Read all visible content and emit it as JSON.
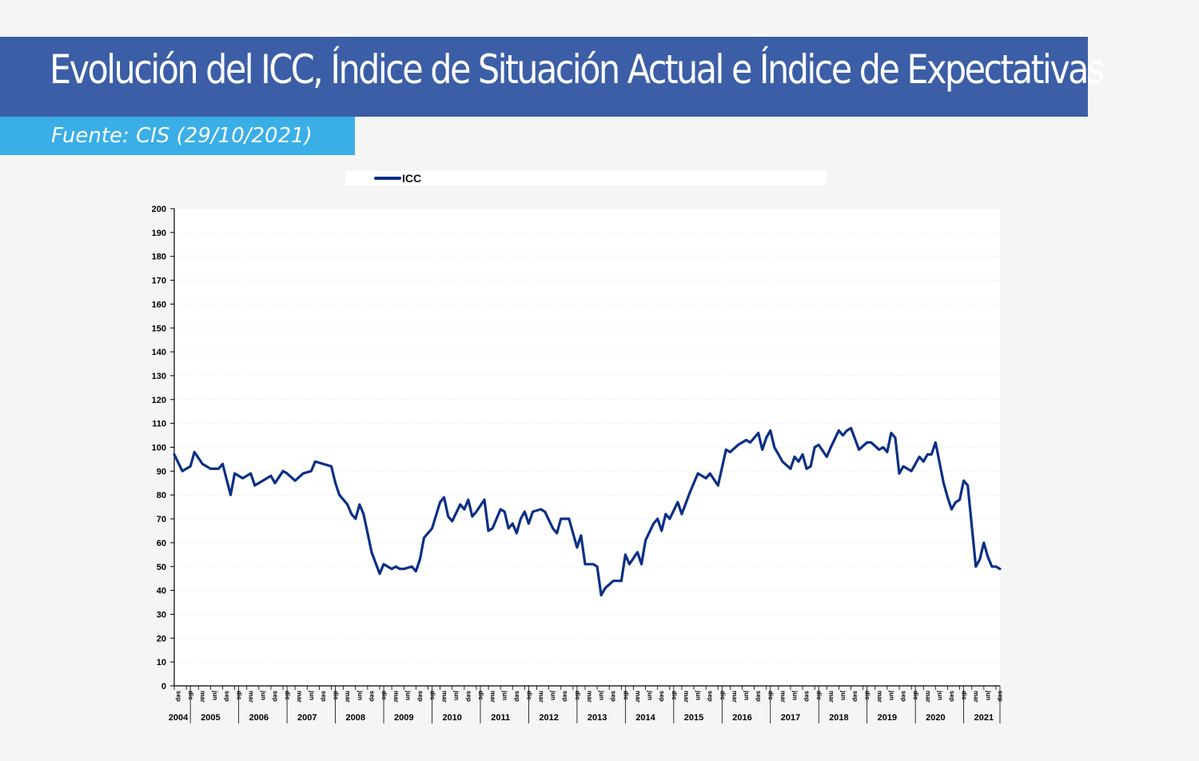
{
  "header": {
    "title": "Evolución del ICC, Índice de Situación Actual e Índice de Expectativas",
    "source": "Fuente: CIS (29/10/2021)"
  },
  "colors": {
    "title_bar": "#3b5ea6",
    "source_bar": "#3aaee6",
    "icc": "#0a2f86",
    "situacion": "#6b2278",
    "expectativas": "#14a19a"
  },
  "chart_data": {
    "type": "line",
    "title": "",
    "xlabel": "",
    "ylabel": "",
    "ylim": [
      0,
      200
    ],
    "yticks": [
      0,
      10,
      20,
      30,
      40,
      50,
      60,
      70,
      80,
      90,
      100,
      110,
      120,
      130,
      140,
      150,
      160,
      170,
      180,
      190,
      200
    ],
    "grid": true,
    "legend_position": "top",
    "x_start": "2004-09",
    "x_end": "2021-10",
    "month_tick_labels": [
      "mar",
      "jun",
      "sep",
      "dic"
    ],
    "year_labels": [
      {
        "label": "2004",
        "at": "2004-10"
      },
      {
        "label": "2005",
        "at": "2005-06"
      },
      {
        "label": "2006",
        "at": "2006-06"
      },
      {
        "label": "2007",
        "at": "2007-06"
      },
      {
        "label": "2008",
        "at": "2008-06"
      },
      {
        "label": "2009",
        "at": "2009-06"
      },
      {
        "label": "2010",
        "at": "2010-06"
      },
      {
        "label": "2011",
        "at": "2011-06"
      },
      {
        "label": "2012",
        "at": "2012-06"
      },
      {
        "label": "2013",
        "at": "2013-06"
      },
      {
        "label": "2014",
        "at": "2014-06"
      },
      {
        "label": "2015",
        "at": "2015-06"
      },
      {
        "label": "2016",
        "at": "2016-06"
      },
      {
        "label": "2017",
        "at": "2017-06"
      },
      {
        "label": "2018",
        "at": "2018-06"
      },
      {
        "label": "2019",
        "at": "2019-06"
      },
      {
        "label": "2020",
        "at": "2020-06"
      },
      {
        "label": "2021",
        "at": "2021-06"
      }
    ],
    "series": [
      {
        "name": "ICC",
        "color": "#0a2f86",
        "points": [
          [
            "2004-09",
            97
          ],
          [
            "2004-11",
            90
          ],
          [
            "2005-01",
            92
          ],
          [
            "2005-02",
            98
          ],
          [
            "2005-04",
            93
          ],
          [
            "2005-06",
            91
          ],
          [
            "2005-08",
            91
          ],
          [
            "2005-09",
            93
          ],
          [
            "2005-11",
            80
          ],
          [
            "2005-12",
            89
          ],
          [
            "2006-02",
            87
          ],
          [
            "2006-04",
            89
          ],
          [
            "2006-05",
            84
          ],
          [
            "2006-07",
            86
          ],
          [
            "2006-09",
            88
          ],
          [
            "2006-10",
            85
          ],
          [
            "2006-12",
            90
          ],
          [
            "2007-01",
            89
          ],
          [
            "2007-03",
            86
          ],
          [
            "2007-05",
            89
          ],
          [
            "2007-07",
            90
          ],
          [
            "2007-08",
            94
          ],
          [
            "2007-10",
            93
          ],
          [
            "2007-12",
            92
          ],
          [
            "2008-01",
            85
          ],
          [
            "2008-02",
            80
          ],
          [
            "2008-04",
            76
          ],
          [
            "2008-05",
            72
          ],
          [
            "2008-06",
            70
          ],
          [
            "2008-07",
            76
          ],
          [
            "2008-08",
            72
          ],
          [
            "2008-09",
            64
          ],
          [
            "2008-10",
            56
          ],
          [
            "2008-12",
            47
          ],
          [
            "2009-01",
            51
          ],
          [
            "2009-02",
            50
          ],
          [
            "2009-03",
            49
          ],
          [
            "2009-04",
            50
          ],
          [
            "2009-05",
            49
          ],
          [
            "2009-06",
            49
          ],
          [
            "2009-08",
            50
          ],
          [
            "2009-09",
            48
          ],
          [
            "2009-10",
            53
          ],
          [
            "2009-11",
            62
          ],
          [
            "2010-01",
            66
          ],
          [
            "2010-03",
            77
          ],
          [
            "2010-04",
            79
          ],
          [
            "2010-05",
            71
          ],
          [
            "2010-06",
            69
          ],
          [
            "2010-08",
            76
          ],
          [
            "2010-09",
            74
          ],
          [
            "2010-10",
            78
          ],
          [
            "2010-11",
            71
          ],
          [
            "2010-12",
            73
          ],
          [
            "2011-02",
            78
          ],
          [
            "2011-03",
            65
          ],
          [
            "2011-04",
            66
          ],
          [
            "2011-06",
            74
          ],
          [
            "2011-07",
            73
          ],
          [
            "2011-08",
            66
          ],
          [
            "2011-09",
            68
          ],
          [
            "2011-10",
            64
          ],
          [
            "2011-11",
            70
          ],
          [
            "2011-12",
            73
          ],
          [
            "2012-01",
            68
          ],
          [
            "2012-02",
            73
          ],
          [
            "2012-04",
            74
          ],
          [
            "2012-05",
            73
          ],
          [
            "2012-07",
            66
          ],
          [
            "2012-08",
            64
          ],
          [
            "2012-09",
            70
          ],
          [
            "2012-11",
            70
          ],
          [
            "2013-01",
            58
          ],
          [
            "2013-02",
            63
          ],
          [
            "2013-03",
            51
          ],
          [
            "2013-05",
            51
          ],
          [
            "2013-06",
            50
          ],
          [
            "2013-07",
            38
          ],
          [
            "2013-08",
            41
          ],
          [
            "2013-10",
            44
          ],
          [
            "2013-12",
            44
          ],
          [
            "2014-01",
            55
          ],
          [
            "2014-02",
            51
          ],
          [
            "2014-04",
            56
          ],
          [
            "2014-05",
            51
          ],
          [
            "2014-06",
            61
          ],
          [
            "2014-08",
            68
          ],
          [
            "2014-09",
            70
          ],
          [
            "2014-10",
            65
          ],
          [
            "2014-11",
            72
          ],
          [
            "2014-12",
            70
          ],
          [
            "2015-02",
            77
          ],
          [
            "2015-03",
            72
          ],
          [
            "2015-05",
            81
          ],
          [
            "2015-07",
            89
          ],
          [
            "2015-09",
            87
          ],
          [
            "2015-10",
            89
          ],
          [
            "2015-12",
            84
          ],
          [
            "2016-02",
            99
          ],
          [
            "2016-03",
            98
          ],
          [
            "2016-05",
            101
          ],
          [
            "2016-07",
            103
          ],
          [
            "2016-08",
            102
          ],
          [
            "2016-10",
            106
          ],
          [
            "2016-11",
            99
          ],
          [
            "2016-12",
            104
          ],
          [
            "2017-01",
            107
          ],
          [
            "2017-02",
            100
          ],
          [
            "2017-04",
            94
          ],
          [
            "2017-06",
            91
          ],
          [
            "2017-07",
            96
          ],
          [
            "2017-08",
            94
          ],
          [
            "2017-09",
            97
          ],
          [
            "2017-10",
            91
          ],
          [
            "2017-11",
            92
          ],
          [
            "2017-12",
            100
          ],
          [
            "2018-01",
            101
          ],
          [
            "2018-03",
            96
          ],
          [
            "2018-04",
            100
          ],
          [
            "2018-06",
            107
          ],
          [
            "2018-07",
            105
          ],
          [
            "2018-08",
            107
          ],
          [
            "2018-09",
            108
          ],
          [
            "2018-11",
            99
          ],
          [
            "2019-01",
            102
          ],
          [
            "2019-02",
            102
          ],
          [
            "2019-04",
            99
          ],
          [
            "2019-05",
            100
          ],
          [
            "2019-06",
            98
          ],
          [
            "2019-07",
            106
          ],
          [
            "2019-08",
            104
          ],
          [
            "2019-09",
            89
          ],
          [
            "2019-10",
            92
          ],
          [
            "2019-12",
            90
          ],
          [
            "2020-01",
            93
          ],
          [
            "2020-02",
            96
          ],
          [
            "2020-03",
            94
          ],
          [
            "2020-04",
            97
          ],
          [
            "2020-05",
            97
          ],
          [
            "2020-06",
            102
          ],
          [
            "2020-08",
            85
          ],
          [
            "2020-09",
            79
          ],
          [
            "2020-10",
            74
          ],
          [
            "2020-11",
            77
          ],
          [
            "2020-12",
            78
          ],
          [
            "2021-01",
            86
          ],
          [
            "2021-02",
            84
          ],
          [
            "2021-04",
            50
          ],
          [
            "2021-05",
            53
          ],
          [
            "2021-06",
            60
          ],
          [
            "2021-07",
            54
          ],
          [
            "2021-08",
            50
          ],
          [
            "2021-09",
            50
          ],
          [
            "2021-10",
            49
          ]
        ]
      }
    ]
  }
}
